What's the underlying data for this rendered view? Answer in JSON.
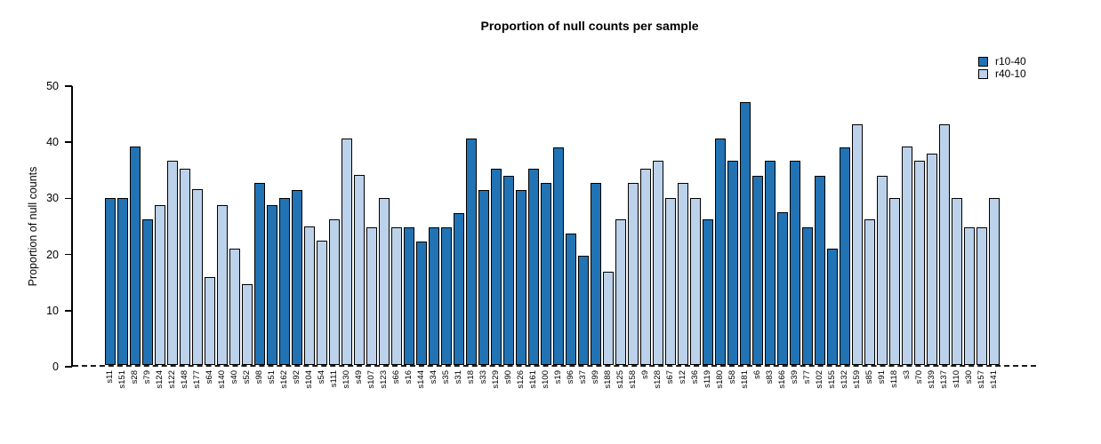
{
  "title": "Proportion of null counts per sample",
  "legend": {
    "items": [
      {
        "label": "r10-40",
        "color": "#2173b4"
      },
      {
        "label": "r40-10",
        "color": "#bcd1ea"
      }
    ]
  },
  "y_axis": {
    "label": "Proportion of null counts",
    "ticks": [
      0,
      10,
      20,
      30,
      40,
      50
    ]
  },
  "chart_data": {
    "type": "bar",
    "title": "Proportion of null counts per sample",
    "xlabel": "",
    "ylabel": "Proportion of null counts",
    "ylim": [
      0,
      50
    ],
    "grid": false,
    "legend_position": "top-right",
    "baseline_style": "dashed",
    "series_colors": {
      "r10-40": "#2173b4",
      "r40-10": "#bcd1ea"
    },
    "samples": [
      {
        "label": "s11",
        "value": 29.8,
        "series": "r10-40"
      },
      {
        "label": "s151",
        "value": 29.8,
        "series": "r10-40"
      },
      {
        "label": "s28",
        "value": 39.0,
        "series": "r10-40"
      },
      {
        "label": "s79",
        "value": 26.0,
        "series": "r10-40"
      },
      {
        "label": "s124",
        "value": 28.5,
        "series": "r40-10"
      },
      {
        "label": "s122",
        "value": 36.4,
        "series": "r40-10"
      },
      {
        "label": "s148",
        "value": 35.0,
        "series": "r40-10"
      },
      {
        "label": "s177",
        "value": 31.3,
        "series": "r40-10"
      },
      {
        "label": "s64",
        "value": 15.6,
        "series": "r40-10"
      },
      {
        "label": "s140",
        "value": 28.5,
        "series": "r40-10"
      },
      {
        "label": "s40",
        "value": 20.8,
        "series": "r40-10"
      },
      {
        "label": "s52",
        "value": 14.4,
        "series": "r40-10"
      },
      {
        "label": "s98",
        "value": 32.5,
        "series": "r10-40"
      },
      {
        "label": "s51",
        "value": 28.5,
        "series": "r10-40"
      },
      {
        "label": "s162",
        "value": 29.8,
        "series": "r10-40"
      },
      {
        "label": "s92",
        "value": 31.2,
        "series": "r10-40"
      },
      {
        "label": "s104",
        "value": 24.7,
        "series": "r40-10"
      },
      {
        "label": "s54",
        "value": 22.1,
        "series": "r40-10"
      },
      {
        "label": "s111",
        "value": 26.0,
        "series": "r40-10"
      },
      {
        "label": "s130",
        "value": 40.3,
        "series": "r40-10"
      },
      {
        "label": "s49",
        "value": 33.8,
        "series": "r40-10"
      },
      {
        "label": "s107",
        "value": 24.6,
        "series": "r40-10"
      },
      {
        "label": "s123",
        "value": 29.7,
        "series": "r40-10"
      },
      {
        "label": "s66",
        "value": 24.6,
        "series": "r40-10"
      },
      {
        "label": "s16",
        "value": 24.6,
        "series": "r10-40"
      },
      {
        "label": "s144",
        "value": 22.0,
        "series": "r10-40"
      },
      {
        "label": "s34",
        "value": 24.6,
        "series": "r10-40"
      },
      {
        "label": "s35",
        "value": 24.6,
        "series": "r10-40"
      },
      {
        "label": "s31",
        "value": 27.1,
        "series": "r10-40"
      },
      {
        "label": "s18",
        "value": 40.3,
        "series": "r10-40"
      },
      {
        "label": "s33",
        "value": 31.2,
        "series": "r10-40"
      },
      {
        "label": "s129",
        "value": 35.0,
        "series": "r10-40"
      },
      {
        "label": "s90",
        "value": 33.7,
        "series": "r10-40"
      },
      {
        "label": "s126",
        "value": 31.2,
        "series": "r10-40"
      },
      {
        "label": "s161",
        "value": 35.0,
        "series": "r10-40"
      },
      {
        "label": "s100",
        "value": 32.5,
        "series": "r10-40"
      },
      {
        "label": "s19",
        "value": 38.8,
        "series": "r10-40"
      },
      {
        "label": "s96",
        "value": 23.4,
        "series": "r10-40"
      },
      {
        "label": "s37",
        "value": 19.4,
        "series": "r10-40"
      },
      {
        "label": "s99",
        "value": 32.5,
        "series": "r10-40"
      },
      {
        "label": "s188",
        "value": 16.7,
        "series": "r40-10"
      },
      {
        "label": "s125",
        "value": 26.0,
        "series": "r40-10"
      },
      {
        "label": "s158",
        "value": 32.5,
        "series": "r40-10"
      },
      {
        "label": "s9",
        "value": 35.0,
        "series": "r40-10"
      },
      {
        "label": "s128",
        "value": 36.4,
        "series": "r40-10"
      },
      {
        "label": "s67",
        "value": 29.8,
        "series": "r40-10"
      },
      {
        "label": "s12",
        "value": 32.5,
        "series": "r40-10"
      },
      {
        "label": "s36",
        "value": 29.8,
        "series": "r40-10"
      },
      {
        "label": "s119",
        "value": 26.0,
        "series": "r10-40"
      },
      {
        "label": "s180",
        "value": 40.3,
        "series": "r10-40"
      },
      {
        "label": "s58",
        "value": 36.4,
        "series": "r10-40"
      },
      {
        "label": "s181",
        "value": 46.9,
        "series": "r10-40"
      },
      {
        "label": "s6",
        "value": 33.7,
        "series": "r10-40"
      },
      {
        "label": "s83",
        "value": 36.4,
        "series": "r10-40"
      },
      {
        "label": "s166",
        "value": 27.2,
        "series": "r10-40"
      },
      {
        "label": "s39",
        "value": 36.4,
        "series": "r10-40"
      },
      {
        "label": "s77",
        "value": 24.6,
        "series": "r10-40"
      },
      {
        "label": "s102",
        "value": 33.7,
        "series": "r10-40"
      },
      {
        "label": "s155",
        "value": 20.7,
        "series": "r10-40"
      },
      {
        "label": "s132",
        "value": 38.8,
        "series": "r10-40"
      },
      {
        "label": "s159",
        "value": 42.9,
        "series": "r40-10"
      },
      {
        "label": "s85",
        "value": 26.0,
        "series": "r40-10"
      },
      {
        "label": "s91",
        "value": 33.7,
        "series": "r40-10"
      },
      {
        "label": "s118",
        "value": 29.8,
        "series": "r40-10"
      },
      {
        "label": "s3",
        "value": 39.0,
        "series": "r40-10"
      },
      {
        "label": "s70",
        "value": 36.4,
        "series": "r40-10"
      },
      {
        "label": "s139",
        "value": 37.6,
        "series": "r40-10"
      },
      {
        "label": "s137",
        "value": 42.9,
        "series": "r40-10"
      },
      {
        "label": "s110",
        "value": 29.8,
        "series": "r40-10"
      },
      {
        "label": "s30",
        "value": 24.6,
        "series": "r40-10"
      },
      {
        "label": "s157",
        "value": 24.6,
        "series": "r40-10"
      },
      {
        "label": "s141",
        "value": 29.8,
        "series": "r40-10"
      }
    ]
  }
}
